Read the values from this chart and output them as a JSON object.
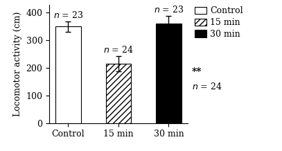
{
  "categories": [
    "Control",
    "15 min",
    "30 min"
  ],
  "values": [
    350,
    215,
    360
  ],
  "errors": [
    18,
    28,
    28
  ],
  "n_labels": [
    "n = 23",
    "n = 24",
    "n = 23"
  ],
  "bar_facecolors": [
    "white",
    "white",
    "black"
  ],
  "bar_edgecolors": [
    "black",
    "black",
    "black"
  ],
  "hatch_patterns": [
    "",
    "////",
    ""
  ],
  "ylabel": "Locomotor activity (cm)",
  "ylim": [
    0,
    430
  ],
  "yticks": [
    0,
    100,
    200,
    300,
    400
  ],
  "sig_label": "**",
  "sig_bar_index": 1,
  "legend_labels": [
    "Control",
    "15 min",
    "30 min"
  ],
  "legend_facecolors": [
    "white",
    "white",
    "black"
  ],
  "legend_hatches": [
    "",
    "////",
    ""
  ],
  "label_fontsize": 9,
  "tick_fontsize": 9,
  "n_label_fontsize": 9,
  "bar_width": 0.5
}
